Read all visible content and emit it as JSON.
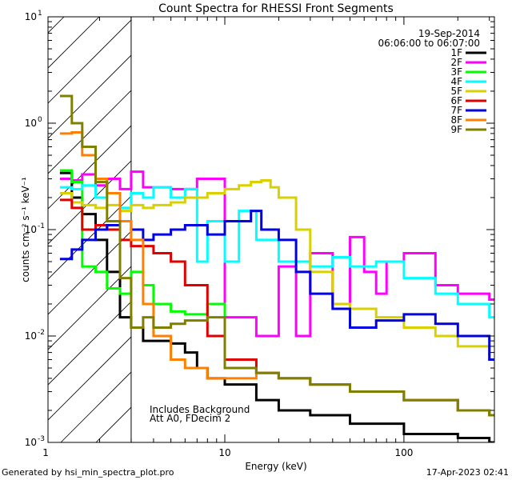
{
  "chart_data": {
    "type": "line",
    "style": "step",
    "title": "Count Spectra for RHESSI Front Segments",
    "xlabel": "Energy (keV)",
    "ylabel": "counts cm⁻² s⁻¹ keV⁻¹",
    "xscale": "log",
    "yscale": "log",
    "xlim": [
      1.03,
      320
    ],
    "ylim": [
      0.001,
      10
    ],
    "x_tick_labels": [
      {
        "value": 1,
        "label": "1"
      },
      {
        "value": 10,
        "label": "10"
      },
      {
        "value": 100,
        "label": "100"
      }
    ],
    "y_tick_labels": [
      {
        "value": 0.001,
        "base": "10",
        "exp": "-3"
      },
      {
        "value": 0.01,
        "base": "10",
        "exp": "-2"
      },
      {
        "value": 0.1,
        "base": "10",
        "exp": "-1"
      },
      {
        "value": 1,
        "base": "10",
        "exp": "0"
      },
      {
        "value": 10,
        "base": "10",
        "exp": "1"
      }
    ],
    "excluded_region": {
      "from": 1.03,
      "to": 3.0,
      "style": "hatched"
    },
    "date": "19-Sep-2014",
    "time_range": "06:06:00 to 06:07:00",
    "annotations": [
      "Includes Background",
      "Att A0, FDecim 2"
    ],
    "legend_position": "top-right",
    "series": [
      {
        "name": "1F",
        "color": "#000000",
        "x": [
          1.2,
          1.4,
          1.6,
          1.9,
          2.2,
          2.6,
          3.0,
          3.5,
          4.0,
          5.0,
          6.0,
          7.0,
          8.0,
          10,
          15,
          20,
          30,
          50,
          100,
          200,
          300
        ],
        "values": [
          0.34,
          0.2,
          0.14,
          0.08,
          0.04,
          0.015,
          0.012,
          0.009,
          0.009,
          0.0085,
          0.007,
          0.005,
          0.004,
          0.0035,
          0.0025,
          0.002,
          0.0018,
          0.0015,
          0.0012,
          0.0011,
          0.001
        ]
      },
      {
        "name": "2F",
        "color": "#ff00ff",
        "x": [
          1.2,
          1.4,
          1.6,
          1.9,
          2.2,
          2.6,
          3.0,
          3.5,
          5.0,
          7.0,
          10,
          15,
          20,
          25,
          30,
          40,
          50,
          60,
          70,
          80,
          100,
          150,
          200,
          300
        ],
        "values": [
          0.3,
          0.29,
          0.33,
          0.26,
          0.3,
          0.24,
          0.35,
          0.25,
          0.24,
          0.3,
          0.015,
          0.01,
          0.045,
          0.01,
          0.06,
          0.02,
          0.085,
          0.04,
          0.025,
          0.05,
          0.06,
          0.03,
          0.025,
          0.022
        ]
      },
      {
        "name": "3F",
        "color": "#00ff00",
        "x": [
          1.2,
          1.4,
          1.6,
          1.9,
          2.2,
          2.6,
          3.0,
          3.5,
          4.0,
          5.0,
          6.0,
          8.0,
          10,
          15,
          20,
          30,
          50,
          100,
          200,
          300
        ],
        "values": [
          0.36,
          0.28,
          0.045,
          0.04,
          0.028,
          0.025,
          0.04,
          0.03,
          0.02,
          0.017,
          0.016,
          0.02,
          0.005,
          0.0045,
          0.004,
          0.0035,
          0.003,
          0.0025,
          0.002,
          0.0018
        ]
      },
      {
        "name": "4F",
        "color": "#00ffff",
        "x": [
          1.2,
          1.4,
          1.6,
          1.9,
          2.2,
          2.6,
          3.0,
          3.5,
          4.0,
          5.0,
          6.0,
          7.0,
          8.0,
          10,
          12,
          15,
          20,
          30,
          40,
          50,
          70,
          100,
          150,
          200,
          300
        ],
        "values": [
          0.25,
          0.24,
          0.26,
          0.2,
          0.22,
          0.16,
          0.22,
          0.2,
          0.25,
          0.2,
          0.24,
          0.05,
          0.12,
          0.05,
          0.15,
          0.08,
          0.05,
          0.045,
          0.055,
          0.045,
          0.05,
          0.035,
          0.025,
          0.02,
          0.015
        ]
      },
      {
        "name": "5F",
        "color": "#d8d000",
        "x": [
          1.2,
          1.4,
          1.6,
          1.9,
          2.2,
          2.6,
          3.0,
          3.5,
          4.0,
          5.0,
          6.0,
          8.0,
          10,
          12,
          14,
          16,
          18,
          20,
          25,
          30,
          40,
          50,
          70,
          100,
          150,
          200,
          300
        ],
        "values": [
          0.22,
          0.18,
          0.17,
          0.16,
          0.17,
          0.15,
          0.17,
          0.16,
          0.17,
          0.18,
          0.2,
          0.22,
          0.24,
          0.26,
          0.28,
          0.29,
          0.25,
          0.2,
          0.1,
          0.04,
          0.02,
          0.018,
          0.015,
          0.012,
          0.01,
          0.008,
          0.006
        ]
      },
      {
        "name": "6F",
        "color": "#e00000",
        "x": [
          1.2,
          1.4,
          1.6,
          1.9,
          2.2,
          2.6,
          3.0,
          3.5,
          4.0,
          5.0,
          6.0,
          8.0,
          10,
          15,
          20,
          30,
          50,
          100,
          200,
          300
        ],
        "values": [
          0.19,
          0.16,
          0.1,
          0.11,
          0.1,
          0.08,
          0.07,
          0.07,
          0.06,
          0.05,
          0.03,
          0.01,
          0.006,
          0.0045,
          0.004,
          0.0035,
          0.003,
          0.0025,
          0.002,
          0.0018
        ]
      },
      {
        "name": "7F",
        "color": "#0000e0",
        "x": [
          1.2,
          1.4,
          1.6,
          1.9,
          2.2,
          2.6,
          3.0,
          3.5,
          4.0,
          5.0,
          6.0,
          8.0,
          10,
          12,
          14,
          16,
          20,
          25,
          30,
          40,
          50,
          70,
          100,
          150,
          200,
          300
        ],
        "values": [
          0.053,
          0.065,
          0.08,
          0.1,
          0.11,
          0.12,
          0.1,
          0.08,
          0.09,
          0.1,
          0.11,
          0.09,
          0.12,
          0.12,
          0.15,
          0.1,
          0.08,
          0.04,
          0.025,
          0.018,
          0.012,
          0.014,
          0.016,
          0.013,
          0.01,
          0.006
        ]
      },
      {
        "name": "8F",
        "color": "#ff8000",
        "x": [
          1.2,
          1.4,
          1.6,
          1.9,
          2.2,
          2.6,
          3.0,
          3.5,
          4.0,
          5.0,
          6.0,
          8.0,
          10,
          15,
          20,
          30,
          50,
          100,
          200,
          300
        ],
        "values": [
          0.8,
          0.82,
          0.5,
          0.3,
          0.22,
          0.12,
          0.08,
          0.02,
          0.01,
          0.006,
          0.005,
          0.004,
          0.004,
          0.0045,
          0.004,
          0.0035,
          0.003,
          0.0025,
          0.002,
          0.0018
        ]
      },
      {
        "name": "9F",
        "color": "#808000",
        "x": [
          1.2,
          1.4,
          1.6,
          1.9,
          2.2,
          2.6,
          3.0,
          3.5,
          4.0,
          5.0,
          6.0,
          8.0,
          10,
          15,
          20,
          30,
          50,
          100,
          200,
          300
        ],
        "values": [
          1.8,
          1.0,
          0.6,
          0.28,
          0.12,
          0.035,
          0.012,
          0.015,
          0.012,
          0.013,
          0.014,
          0.015,
          0.005,
          0.0045,
          0.004,
          0.0035,
          0.003,
          0.0025,
          0.002,
          0.0018
        ]
      }
    ]
  },
  "footer": {
    "generated_by": "Generated by hsi_min_spectra_plot.pro",
    "timestamp": "17-Apr-2023 02:41"
  }
}
